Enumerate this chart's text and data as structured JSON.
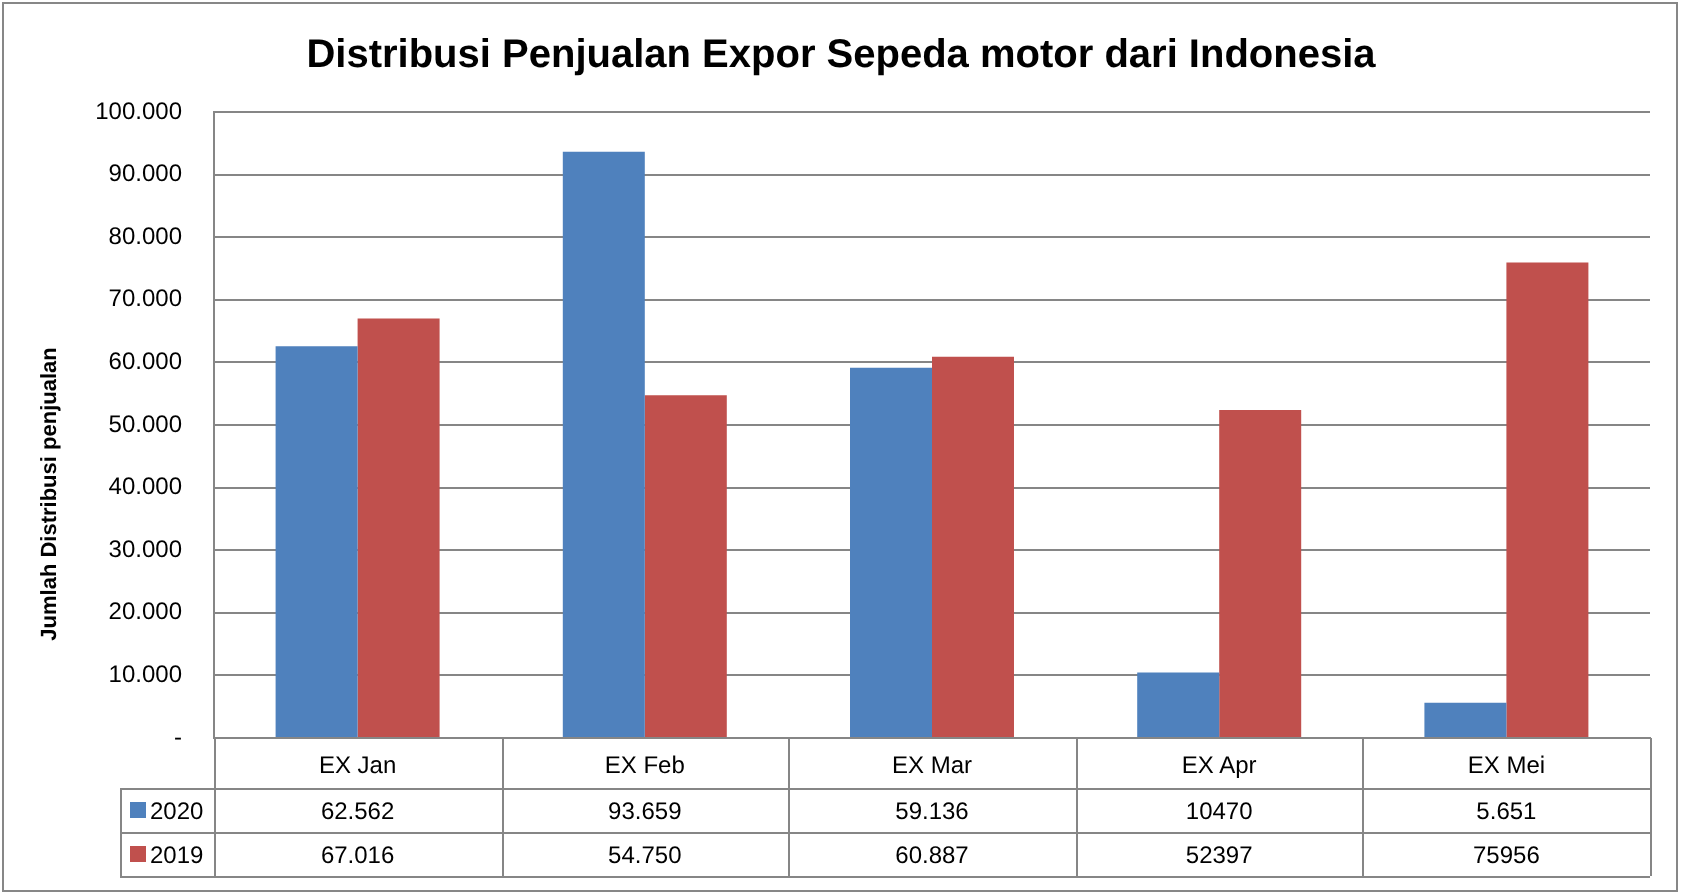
{
  "chart_data": {
    "type": "bar",
    "title": "Distribusi Penjualan Expor Sepeda motor dari Indonesia",
    "ylabel": "Jumlah Distribusi penjualan",
    "categories": [
      "EX Jan",
      "EX Feb",
      "EX Mar",
      "EX Apr",
      "EX Mei"
    ],
    "series": [
      {
        "name": "2020",
        "color": "#4f81bd",
        "values": [
          62562,
          93659,
          59136,
          10470,
          5651
        ],
        "value_labels": [
          "62.562",
          "93.659",
          "59.136",
          "10470",
          "5.651"
        ]
      },
      {
        "name": "2019",
        "color": "#c0504d",
        "values": [
          67016,
          54750,
          60887,
          52397,
          75956
        ],
        "value_labels": [
          "67.016",
          "54.750",
          "60.887",
          "52397",
          "75956"
        ]
      }
    ],
    "ylim": [
      0,
      100000
    ],
    "yticks": [
      {
        "value": 0,
        "label": "-"
      },
      {
        "value": 10000,
        "label": "10.000"
      },
      {
        "value": 20000,
        "label": "20.000"
      },
      {
        "value": 30000,
        "label": "30.000"
      },
      {
        "value": 40000,
        "label": "40.000"
      },
      {
        "value": 50000,
        "label": "50.000"
      },
      {
        "value": 60000,
        "label": "60.000"
      },
      {
        "value": 70000,
        "label": "70.000"
      },
      {
        "value": 80000,
        "label": "80.000"
      },
      {
        "value": 90000,
        "label": "90.000"
      },
      {
        "value": 100000,
        "label": "100.000"
      }
    ],
    "grid": "y",
    "legend": "bottom"
  }
}
